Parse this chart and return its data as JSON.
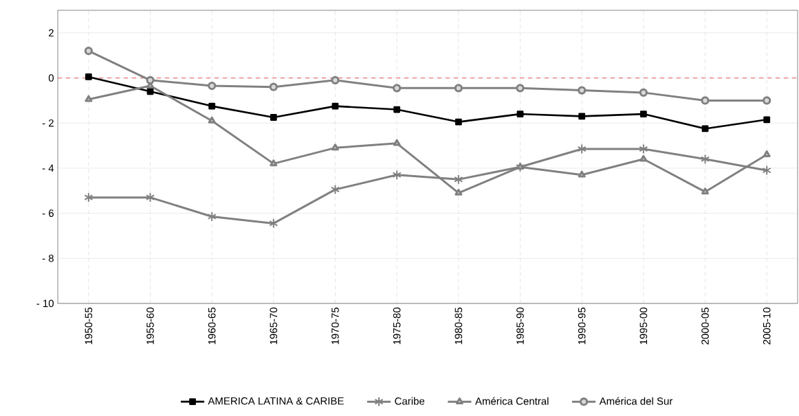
{
  "chart_data": {
    "type": "line",
    "categories": [
      "1950-55",
      "1955-60",
      "1960-65",
      "1965-70",
      "1970-75",
      "1975-80",
      "1980-85",
      "1985-90",
      "1990-95",
      "1995-00",
      "2000-05",
      "2005-10"
    ],
    "series": [
      {
        "name": "AMERICA LATINA & CARIBE",
        "color": "#000000",
        "marker": "square",
        "values": [
          0.05,
          -0.6,
          -1.25,
          -1.75,
          -1.25,
          -1.4,
          -1.95,
          -1.6,
          -1.7,
          -1.6,
          -2.25,
          -1.85
        ]
      },
      {
        "name": "Caribe",
        "color": "#808080",
        "marker": "cross",
        "values": [
          -5.3,
          -5.3,
          -6.15,
          -6.45,
          -4.95,
          -4.3,
          -4.5,
          -3.95,
          -3.15,
          -3.15,
          -3.6,
          -4.1
        ]
      },
      {
        "name": "América Central",
        "color": "#808080",
        "marker": "triangle",
        "values": [
          -0.95,
          -0.35,
          -1.9,
          -3.8,
          -3.1,
          -2.9,
          -5.1,
          -3.95,
          -4.3,
          -3.6,
          -5.05,
          -3.4
        ]
      },
      {
        "name": "América del Sur",
        "color": "#808080",
        "marker": "circle",
        "values": [
          1.2,
          -0.1,
          -0.35,
          -0.4,
          -0.1,
          -0.45,
          -0.45,
          -0.45,
          -0.55,
          -0.65,
          -1.0,
          -1.0
        ]
      }
    ],
    "ylim": [
      -10,
      3
    ],
    "yticks": [
      2,
      0,
      {
        "value": -2,
        "label": "- 2"
      },
      {
        "value": -4,
        "label": "- 4"
      },
      {
        "value": -6,
        "label": "- 6"
      },
      {
        "value": -8,
        "label": "- 8"
      },
      {
        "value": -10,
        "label": "- 10"
      }
    ],
    "ref_lines": [
      {
        "axis": "y",
        "value": 0,
        "color": "#e06666",
        "line_style": "dashed"
      }
    ],
    "grid": true,
    "legend": "bottom",
    "line_style": "solid"
  }
}
